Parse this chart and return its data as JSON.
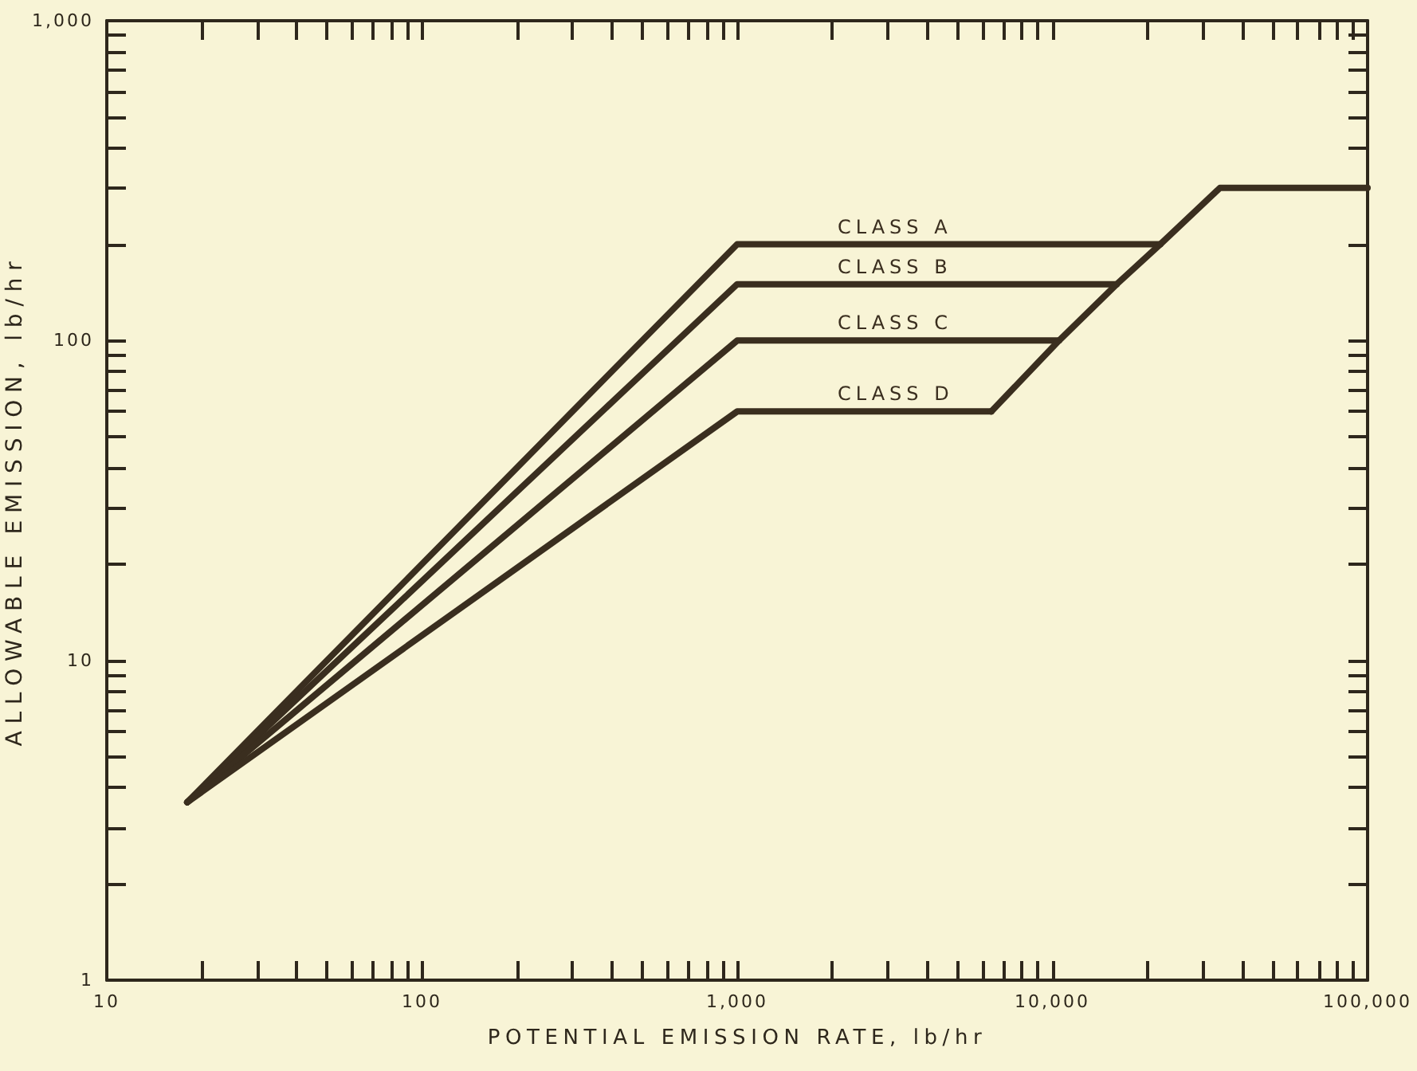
{
  "chart_data": {
    "type": "line",
    "xlabel": "POTENTIAL EMISSION RATE, lb/hr",
    "ylabel": "ALLOWABLE EMISSION, lb/hr",
    "log": "xy",
    "xlim": [
      10,
      100000
    ],
    "ylim": [
      1,
      1000
    ],
    "xticks": [
      10,
      {
        "value": 20,
        "label": null
      },
      {
        "value": 30,
        "label": null
      },
      {
        "value": 40,
        "label": null
      },
      {
        "value": 50,
        "label": null
      },
      {
        "value": 60,
        "label": null
      },
      {
        "value": 70,
        "label": null
      },
      {
        "value": 80,
        "label": null
      },
      {
        "value": 90,
        "label": null
      },
      100,
      {
        "value": 200,
        "label": null
      },
      {
        "value": 300,
        "label": null
      },
      {
        "value": 400,
        "label": null
      },
      {
        "value": 500,
        "label": null
      },
      {
        "value": 600,
        "label": null
      },
      {
        "value": 700,
        "label": null
      },
      {
        "value": 800,
        "label": null
      },
      {
        "value": 900,
        "label": null
      },
      {
        "value": 1000,
        "label": "1,000"
      },
      {
        "value": 2000,
        "label": null
      },
      {
        "value": 3000,
        "label": null
      },
      {
        "value": 4000,
        "label": null
      },
      {
        "value": 5000,
        "label": null
      },
      {
        "value": 6000,
        "label": null
      },
      {
        "value": 7000,
        "label": null
      },
      {
        "value": 8000,
        "label": null
      },
      {
        "value": 9000,
        "label": null
      },
      {
        "value": 10000,
        "label": "10,000"
      },
      {
        "value": 20000,
        "label": null
      },
      {
        "value": 30000,
        "label": null
      },
      {
        "value": 40000,
        "label": null
      },
      {
        "value": 50000,
        "label": null
      },
      {
        "value": 60000,
        "label": null
      },
      {
        "value": 70000,
        "label": null
      },
      {
        "value": 80000,
        "label": null
      },
      {
        "value": 90000,
        "label": null
      },
      {
        "value": 100000,
        "label": "100,000"
      }
    ],
    "yticks": [
      1,
      {
        "value": 2,
        "label": null
      },
      {
        "value": 3,
        "label": null
      },
      {
        "value": 4,
        "label": null
      },
      {
        "value": 5,
        "label": null
      },
      {
        "value": 6,
        "label": null
      },
      {
        "value": 7,
        "label": null
      },
      {
        "value": 8,
        "label": null
      },
      {
        "value": 9,
        "label": null
      },
      10,
      {
        "value": 20,
        "label": null
      },
      {
        "value": 30,
        "label": null
      },
      {
        "value": 40,
        "label": null
      },
      {
        "value": 50,
        "label": null
      },
      {
        "value": 60,
        "label": null
      },
      {
        "value": 70,
        "label": null
      },
      {
        "value": 80,
        "label": null
      },
      {
        "value": 90,
        "label": null
      },
      100,
      {
        "value": 200,
        "label": null
      },
      {
        "value": 300,
        "label": null
      },
      {
        "value": 400,
        "label": null
      },
      {
        "value": 500,
        "label": null
      },
      {
        "value": 600,
        "label": null
      },
      {
        "value": 700,
        "label": null
      },
      {
        "value": 800,
        "label": null
      },
      {
        "value": 900,
        "label": null
      },
      {
        "value": 1000,
        "label": "1,000"
      }
    ],
    "series": [
      {
        "name": "CLASS A",
        "color": "#3a2e1f",
        "x": [
          18,
          1000,
          22000
        ],
        "values": [
          3.6,
          200,
          200
        ]
      },
      {
        "name": "CLASS B",
        "color": "#3a2e1f",
        "x": [
          18,
          1000,
          16000
        ],
        "values": [
          3.6,
          150,
          150
        ]
      },
      {
        "name": "CLASS C",
        "color": "#3a2e1f",
        "x": [
          18,
          1000,
          10500
        ],
        "values": [
          3.6,
          100,
          100
        ]
      },
      {
        "name": "CLASS D",
        "color": "#3a2e1f",
        "x": [
          18,
          1000,
          6400
        ],
        "values": [
          3.6,
          60,
          60
        ]
      },
      {
        "color": "#3a2e1f",
        "x": [
          6400,
          10500,
          16000,
          22000,
          34000,
          100000
        ],
        "values": [
          60,
          100,
          150,
          200,
          300,
          300
        ]
      }
    ]
  }
}
